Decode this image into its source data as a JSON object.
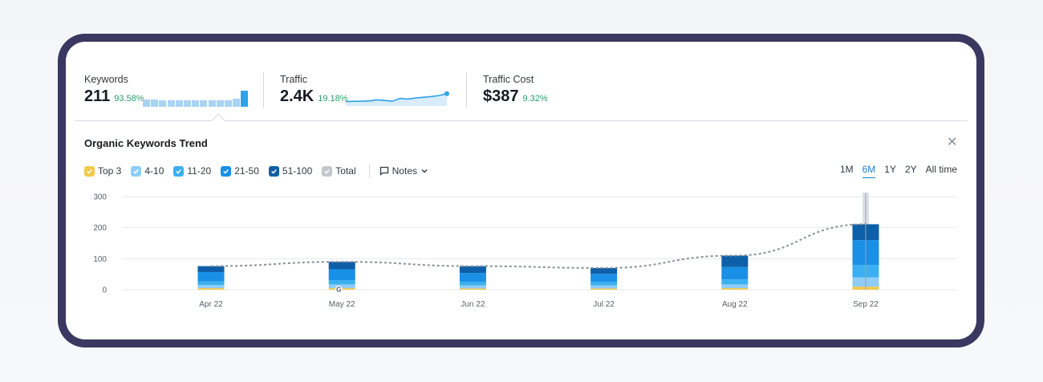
{
  "metrics": {
    "keywords": {
      "label": "Keywords",
      "value": "211",
      "change": "93.58%",
      "spark": [
        0.45,
        0.45,
        0.4,
        0.38,
        0.38,
        0.38,
        0.38,
        0.38,
        0.42,
        0.38,
        0.38,
        0.5,
        1.0
      ]
    },
    "traffic": {
      "label": "Traffic",
      "value": "2.4K",
      "change": "19.18%",
      "spark": [
        0.3,
        0.32,
        0.32,
        0.35,
        0.42,
        0.38,
        0.33,
        0.52,
        0.48,
        0.55,
        0.6,
        0.65,
        0.72,
        0.85
      ]
    },
    "traffic_cost": {
      "label": "Traffic Cost",
      "value": "$387",
      "change": "9.32%"
    }
  },
  "trend": {
    "title": "Organic Keywords Trend",
    "close_icon": "close-icon",
    "legend": [
      {
        "label": "Top 3",
        "color": "#f2c94c"
      },
      {
        "label": "4-10",
        "color": "#8fcdf7"
      },
      {
        "label": "11-20",
        "color": "#3bb0f0"
      },
      {
        "label": "21-50",
        "color": "#1a8fe6"
      },
      {
        "label": "51-100",
        "color": "#0d5fa8"
      },
      {
        "label": "Total",
        "color": "#c4c7cd"
      }
    ],
    "notes_label": "Notes",
    "ranges": [
      "1M",
      "6M",
      "1Y",
      "2Y",
      "All time"
    ],
    "active_range": "6M"
  },
  "chart_data": {
    "type": "bar",
    "stacked": true,
    "categories": [
      "Apr 22",
      "May 22",
      "Jun 22",
      "Jul 22",
      "Aug 22",
      "Sep 22"
    ],
    "series": [
      {
        "name": "Top 3",
        "values": [
          5,
          5,
          4,
          4,
          5,
          10
        ]
      },
      {
        "name": "4-10",
        "values": [
          10,
          12,
          10,
          10,
          12,
          30
        ]
      },
      {
        "name": "11-20",
        "values": [
          12,
          14,
          12,
          12,
          16,
          40
        ]
      },
      {
        "name": "21-50",
        "values": [
          30,
          35,
          28,
          25,
          40,
          80
        ]
      },
      {
        "name": "51-100",
        "values": [
          19,
          24,
          22,
          19,
          37,
          51
        ]
      }
    ],
    "total": [
      76,
      90,
      76,
      70,
      110,
      211
    ],
    "yticks": [
      0,
      100,
      200,
      300
    ],
    "ylim": [
      0,
      300
    ],
    "marker": {
      "category": "May 22",
      "icon": "google-icon"
    },
    "highlight": "Sep 22"
  }
}
